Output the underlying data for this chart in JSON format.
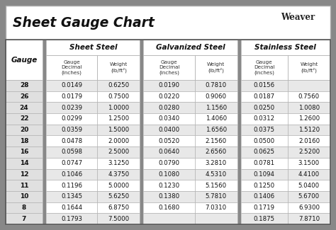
{
  "title": "Sheet Gauge Chart",
  "bg_outer": "#888888",
  "bg_white": "#ffffff",
  "bg_table": "#888888",
  "bg_gauge_col": "#e0e0e0",
  "bg_row_white": "#ffffff",
  "bg_row_light": "#e8e8e8",
  "border_color": "#555555",
  "gauge_col": [
    28,
    26,
    24,
    22,
    20,
    18,
    16,
    14,
    12,
    11,
    10,
    8,
    7
  ],
  "sheet_steel": {
    "label": "Sheet Steel",
    "decimal": [
      "0.0149",
      "0.0179",
      "0.0239",
      "0.0299",
      "0.0359",
      "0.0478",
      "0.0598",
      "0.0747",
      "0.1046",
      "0.1196",
      "0.1345",
      "0.1644",
      "0.1793"
    ],
    "weight": [
      "0.6250",
      "0.7500",
      "1.0000",
      "1.2500",
      "1.5000",
      "2.0000",
      "2.5000",
      "3.1250",
      "4.3750",
      "5.0000",
      "5.6250",
      "6.8750",
      "7.5000"
    ]
  },
  "galvanized_steel": {
    "label": "Galvanized Steel",
    "decimal": [
      "0.0190",
      "0.0220",
      "0.0280",
      "0.0340",
      "0.0400",
      "0.0520",
      "0.0640",
      "0.0790",
      "0.1080",
      "0.1230",
      "0.1380",
      "0.1680",
      ""
    ],
    "weight": [
      "0.7810",
      "0.9060",
      "1.1560",
      "1.4060",
      "1.6560",
      "2.1560",
      "2.6560",
      "3.2810",
      "4.5310",
      "5.1560",
      "5.7810",
      "7.0310",
      ""
    ]
  },
  "stainless_steel": {
    "label": "Stainless Steel",
    "decimal": [
      "0.0156",
      "0.0187",
      "0.0250",
      "0.0312",
      "0.0375",
      "0.0500",
      "0.0625",
      "0.0781",
      "0.1094",
      "0.1250",
      "0.1406",
      "0.1719",
      "0.1875"
    ],
    "weight": [
      "",
      "0.7560",
      "1.0080",
      "1.2600",
      "1.5120",
      "2.0160",
      "2.5200",
      "3.1500",
      "4.4100",
      "5.0400",
      "5.6700",
      "6.9300",
      "7.8710"
    ]
  },
  "figsize": [
    4.74,
    3.25
  ],
  "dpi": 100
}
